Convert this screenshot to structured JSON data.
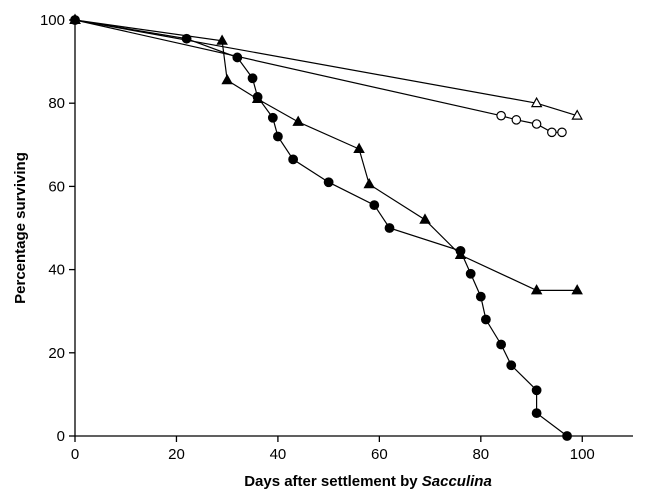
{
  "chart_data": {
    "type": "line",
    "title": "",
    "xlabel": "Days after settlement by ",
    "xlabel_italic": "Sacculina",
    "ylabel": "Percentage surviving",
    "xlim": [
      0,
      110
    ],
    "ylim": [
      0,
      100
    ],
    "xticks": [
      0,
      20,
      40,
      60,
      80,
      100
    ],
    "yticks": [
      0,
      20,
      40,
      60,
      80,
      100
    ],
    "grid": false,
    "series": [
      {
        "marker": "open-triangle",
        "x": [
          0,
          91,
          99
        ],
        "y": [
          100,
          80,
          77
        ]
      },
      {
        "marker": "open-circle",
        "x": [
          0,
          84,
          87,
          91,
          94,
          96
        ],
        "y": [
          100,
          77,
          76,
          75,
          73,
          73
        ]
      },
      {
        "marker": "filled-triangle",
        "x": [
          0,
          29,
          30,
          36,
          44,
          56,
          58,
          69,
          76,
          91,
          99
        ],
        "y": [
          100,
          95,
          85.5,
          81,
          75.5,
          69,
          60.5,
          52,
          43.5,
          35,
          35
        ]
      },
      {
        "marker": "filled-circle",
        "x": [
          0,
          22,
          32,
          35,
          36,
          39,
          40,
          43,
          50,
          59,
          62,
          76,
          78,
          80,
          81,
          84,
          86,
          91,
          91,
          97
        ],
        "y": [
          100,
          95.5,
          91,
          86,
          81.5,
          76.5,
          72,
          66.5,
          61,
          55.5,
          50,
          44.5,
          39,
          33.5,
          28,
          22,
          17,
          11,
          5.5,
          0
        ]
      }
    ]
  }
}
